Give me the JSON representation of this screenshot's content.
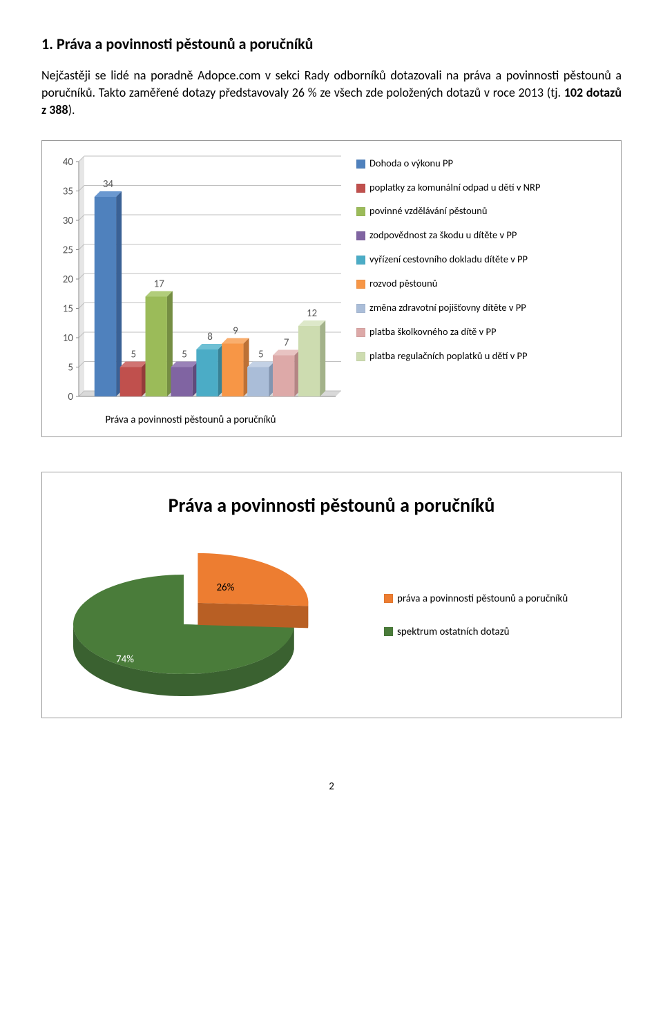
{
  "section": {
    "title": "1.  Práva a povinnosti pěstounů a poručníků",
    "paragraph_html": "Nejčastěji se lidé na poradně Adopce.com v sekci Rady odborníků dotazovali na práva a povinnosti pěstounů a poručníků. Takto zaměřené dotazy představovaly 26 % ze všech zde položených dotazů v roce 2013 (tj. <b>102 dotazů z 388</b>)."
  },
  "bar_chart": {
    "x_label": "Práva a povinnosti pěstounů a poručníků",
    "y_max": 40,
    "y_tick_step": 5,
    "tick_color": "#888888",
    "grid_color": "#bfbfbf",
    "axis_color": "#888888",
    "label_font_size": 15,
    "bars": [
      {
        "value": 34,
        "value_label": "34",
        "front": "#4f81bd",
        "top": "#6a98d0",
        "side": "#3a6195",
        "legend": "Dohoda o výkonu PP"
      },
      {
        "value": 5,
        "value_label": "5",
        "front": "#c0504d",
        "top": "#d07472",
        "side": "#933c3a",
        "legend": "poplatky za komunální odpad u dětí v NRP"
      },
      {
        "value": 17,
        "value_label": "17",
        "front": "#9bbb59",
        "top": "#b1cd7a",
        "side": "#758e43",
        "legend": "povinné vzdělávání pěstounů"
      },
      {
        "value": 5,
        "value_label": "5",
        "front": "#8064a2",
        "top": "#9a82b8",
        "side": "#604b7b",
        "legend": "zodpovědnost za škodu u dítěte v PP"
      },
      {
        "value": 8,
        "value_label": "8",
        "front": "#4bacc6",
        "top": "#6fc0d4",
        "side": "#388296",
        "legend": "vyřízení cestovního dokladu dítěte v PP"
      },
      {
        "value": 9,
        "value_label": "9",
        "front": "#f79646",
        "top": "#f9ae6e",
        "side": "#bd7135",
        "legend": "rozvod pěstounů"
      },
      {
        "value": 5,
        "value_label": "5",
        "front": "#aabdd8",
        "top": "#c3d1e5",
        "side": "#8295b0",
        "legend": "změna zdravotní pojišťovny dítěte v PP"
      },
      {
        "value": 7,
        "value_label": "7",
        "front": "#dda9a8",
        "top": "#e8c3c2",
        "side": "#b48584",
        "legend": "platba školkovného za dítě v PP"
      },
      {
        "value": 12,
        "value_label": "12",
        "front": "#cddcb0",
        "top": "#dde8c9",
        "side": "#a3b28a",
        "legend": "platba regulačních poplatků u dětí v PP"
      }
    ]
  },
  "pie_chart": {
    "title": "Práva a povinnosti pěstounů a poručníků",
    "slices": [
      {
        "pct": 26,
        "pct_label": "26%",
        "top": "#ed7d31",
        "side": "#b85f24",
        "legend": "práva a povinnosti pěstounů a poručníků"
      },
      {
        "pct": 74,
        "pct_label": "74%",
        "top": "#4a7c3a",
        "side": "#3a6130",
        "legend": "spektrum ostatních dotazů"
      }
    ]
  },
  "page_number": "2"
}
